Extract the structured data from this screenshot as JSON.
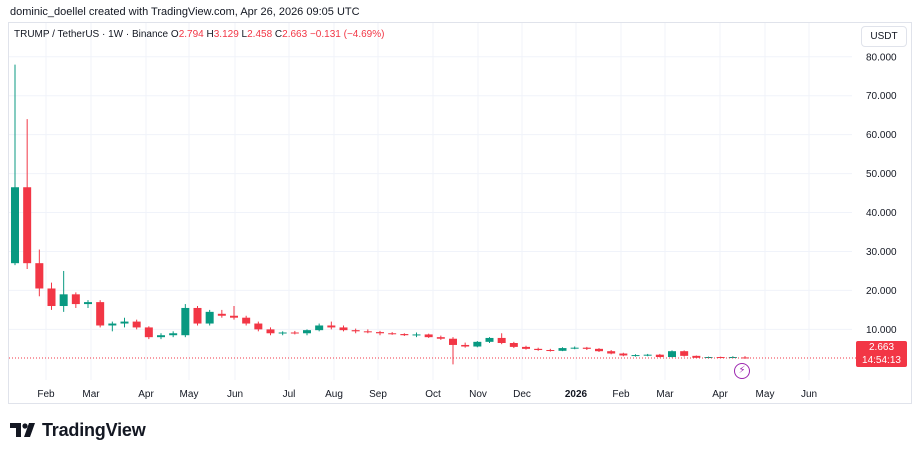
{
  "attribution": "dominic_doellel created with TradingView.com, Apr 26, 2026 09:05 UTC",
  "legend": {
    "symbol": "TRUMP / TetherUS · 1W · Binance",
    "open_label": "O",
    "open": "2.794",
    "high_label": "H",
    "high": "3.129",
    "low_label": "L",
    "low": "2.458",
    "close_label": "C",
    "close": "2.663",
    "change": "−0.131 (−4.69%)"
  },
  "currency_unit": "USDT",
  "price_tag": {
    "price": "2.663",
    "countdown": "14:54:13"
  },
  "brand": {
    "name": "TradingView"
  },
  "colors": {
    "up": "#089981",
    "down": "#f23645",
    "grid": "#f0f3fa",
    "event": "#9c27b0"
  },
  "event_icon": "lightning-icon",
  "chart_data": {
    "type": "candlestick",
    "y_axis_ticks": [
      "10.000",
      "20.000",
      "30.000",
      "40.000",
      "50.000",
      "60.000",
      "70.000",
      "80.000"
    ],
    "x_axis_ticks": [
      "Feb",
      "Mar",
      "Apr",
      "May",
      "Jun",
      "Jul",
      "Aug",
      "Sep",
      "Oct",
      "Nov",
      "Dec",
      "2026",
      "Feb",
      "Mar",
      "Apr",
      "May",
      "Jun"
    ],
    "ylim": [
      -3,
      82
    ],
    "last_price_line": 2.663,
    "candles": [
      {
        "o": 27.0,
        "h": 78.0,
        "l": 26.5,
        "c": 46.5
      },
      {
        "o": 46.5,
        "h": 64.0,
        "l": 25.5,
        "c": 27.0
      },
      {
        "o": 27.0,
        "h": 30.5,
        "l": 18.5,
        "c": 20.5
      },
      {
        "o": 20.5,
        "h": 22.0,
        "l": 15.0,
        "c": 16.0
      },
      {
        "o": 16.0,
        "h": 25.0,
        "l": 14.5,
        "c": 19.0
      },
      {
        "o": 19.0,
        "h": 19.5,
        "l": 15.5,
        "c": 16.5
      },
      {
        "o": 16.5,
        "h": 17.5,
        "l": 15.5,
        "c": 17.0
      },
      {
        "o": 17.0,
        "h": 17.5,
        "l": 10.5,
        "c": 11.0
      },
      {
        "o": 11.0,
        "h": 12.0,
        "l": 9.5,
        "c": 11.5
      },
      {
        "o": 11.5,
        "h": 13.0,
        "l": 10.5,
        "c": 12.0
      },
      {
        "o": 12.0,
        "h": 12.5,
        "l": 10.0,
        "c": 10.5
      },
      {
        "o": 10.5,
        "h": 10.8,
        "l": 7.5,
        "c": 8.0
      },
      {
        "o": 8.0,
        "h": 9.0,
        "l": 7.5,
        "c": 8.5
      },
      {
        "o": 8.5,
        "h": 9.5,
        "l": 8.0,
        "c": 9.0
      },
      {
        "o": 8.5,
        "h": 16.5,
        "l": 8.0,
        "c": 15.5
      },
      {
        "o": 15.5,
        "h": 16.0,
        "l": 11.0,
        "c": 11.5
      },
      {
        "o": 11.5,
        "h": 15.0,
        "l": 11.0,
        "c": 14.5
      },
      {
        "o": 14.0,
        "h": 15.0,
        "l": 13.0,
        "c": 13.5
      },
      {
        "o": 13.5,
        "h": 16.0,
        "l": 12.5,
        "c": 13.0
      },
      {
        "o": 13.0,
        "h": 13.5,
        "l": 11.0,
        "c": 11.5
      },
      {
        "o": 11.5,
        "h": 12.0,
        "l": 9.5,
        "c": 10.0
      },
      {
        "o": 10.0,
        "h": 10.5,
        "l": 8.5,
        "c": 9.0
      },
      {
        "o": 9.0,
        "h": 9.5,
        "l": 8.5,
        "c": 9.2
      },
      {
        "o": 9.2,
        "h": 9.6,
        "l": 8.7,
        "c": 9.0
      },
      {
        "o": 9.0,
        "h": 10.0,
        "l": 8.5,
        "c": 9.8
      },
      {
        "o": 9.8,
        "h": 11.5,
        "l": 9.5,
        "c": 11.0
      },
      {
        "o": 11.0,
        "h": 12.0,
        "l": 10.0,
        "c": 10.5
      },
      {
        "o": 10.5,
        "h": 11.0,
        "l": 9.5,
        "c": 9.8
      },
      {
        "o": 9.8,
        "h": 10.2,
        "l": 9.0,
        "c": 9.5
      },
      {
        "o": 9.5,
        "h": 10.0,
        "l": 9.0,
        "c": 9.3
      },
      {
        "o": 9.3,
        "h": 9.6,
        "l": 8.5,
        "c": 9.0
      },
      {
        "o": 9.0,
        "h": 9.3,
        "l": 8.6,
        "c": 8.8
      },
      {
        "o": 8.8,
        "h": 9.0,
        "l": 8.3,
        "c": 8.5
      },
      {
        "o": 8.5,
        "h": 9.2,
        "l": 8.0,
        "c": 8.7
      },
      {
        "o": 8.7,
        "h": 8.9,
        "l": 7.8,
        "c": 8.0
      },
      {
        "o": 8.0,
        "h": 8.4,
        "l": 7.3,
        "c": 7.6
      },
      {
        "o": 7.6,
        "h": 8.0,
        "l": 1.0,
        "c": 6.0
      },
      {
        "o": 6.0,
        "h": 6.6,
        "l": 5.3,
        "c": 5.6
      },
      {
        "o": 5.6,
        "h": 7.0,
        "l": 5.4,
        "c": 6.8
      },
      {
        "o": 6.8,
        "h": 8.0,
        "l": 6.5,
        "c": 7.8
      },
      {
        "o": 7.8,
        "h": 9.0,
        "l": 6.2,
        "c": 6.5
      },
      {
        "o": 6.5,
        "h": 6.8,
        "l": 5.2,
        "c": 5.5
      },
      {
        "o": 5.5,
        "h": 5.8,
        "l": 4.8,
        "c": 5.0
      },
      {
        "o": 5.0,
        "h": 5.3,
        "l": 4.5,
        "c": 4.7
      },
      {
        "o": 4.7,
        "h": 5.0,
        "l": 4.3,
        "c": 4.5
      },
      {
        "o": 4.5,
        "h": 5.4,
        "l": 4.4,
        "c": 5.2
      },
      {
        "o": 5.2,
        "h": 5.6,
        "l": 4.9,
        "c": 5.3
      },
      {
        "o": 5.3,
        "h": 5.5,
        "l": 4.7,
        "c": 5.0
      },
      {
        "o": 5.0,
        "h": 5.2,
        "l": 4.2,
        "c": 4.4
      },
      {
        "o": 4.4,
        "h": 4.7,
        "l": 3.6,
        "c": 3.8
      },
      {
        "o": 3.8,
        "h": 4.0,
        "l": 3.1,
        "c": 3.3
      },
      {
        "o": 3.3,
        "h": 3.6,
        "l": 3.0,
        "c": 3.4
      },
      {
        "o": 3.4,
        "h": 3.7,
        "l": 3.1,
        "c": 3.5
      },
      {
        "o": 3.5,
        "h": 3.7,
        "l": 2.8,
        "c": 2.9
      },
      {
        "o": 2.9,
        "h": 4.6,
        "l": 2.8,
        "c": 4.4
      },
      {
        "o": 4.4,
        "h": 4.6,
        "l": 3.0,
        "c": 3.2
      },
      {
        "o": 3.2,
        "h": 3.3,
        "l": 2.6,
        "c": 2.7
      },
      {
        "o": 2.7,
        "h": 3.0,
        "l": 2.5,
        "c": 2.9
      },
      {
        "o": 2.9,
        "h": 3.0,
        "l": 2.6,
        "c": 2.8
      },
      {
        "o": 2.8,
        "h": 3.1,
        "l": 2.6,
        "c": 2.9
      },
      {
        "o": 2.794,
        "h": 3.129,
        "l": 2.458,
        "c": 2.663
      }
    ]
  }
}
